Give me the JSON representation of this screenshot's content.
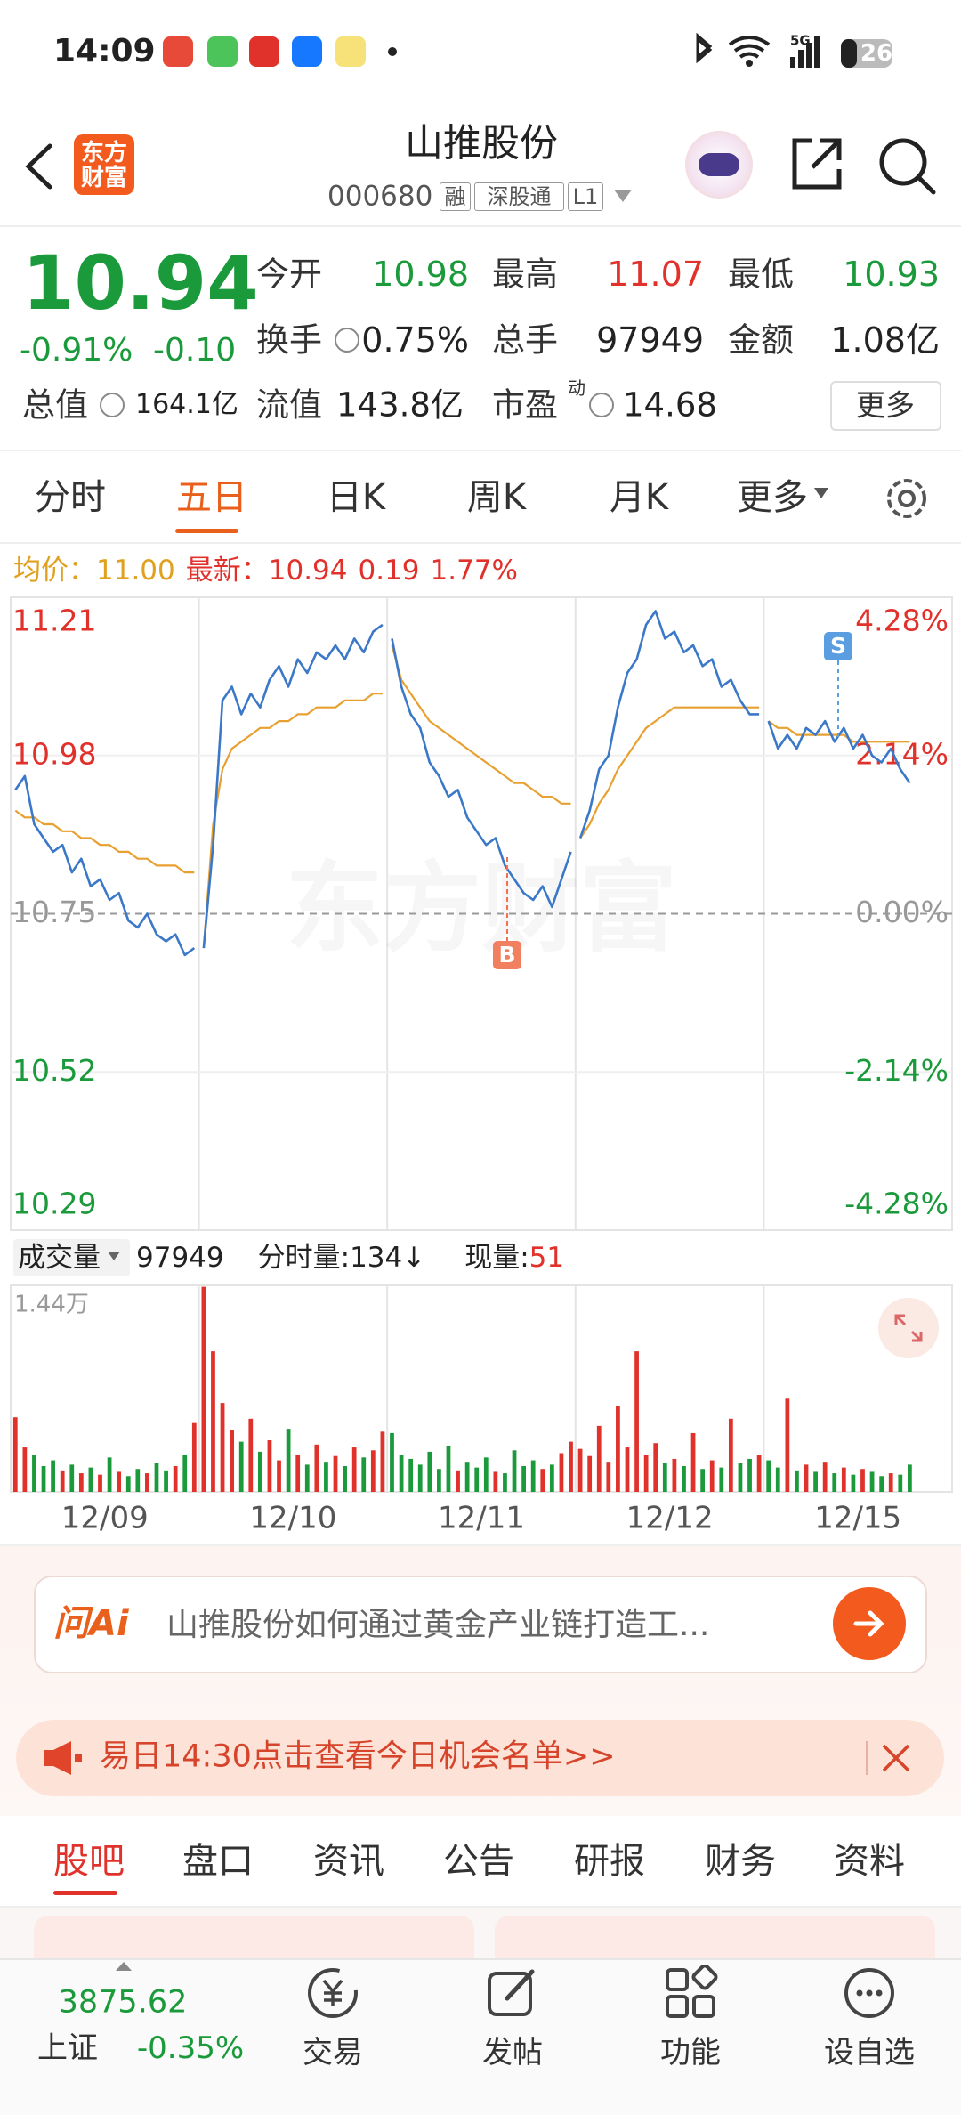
{
  "status_bar": {
    "time": "14:09",
    "signal": "5G",
    "battery": "26"
  },
  "header": {
    "logo": [
      "东方",
      "财富"
    ],
    "name": "山推股份",
    "code": "000680",
    "tags": [
      "融",
      "深股通",
      "L1"
    ]
  },
  "quote": {
    "price": "10.94",
    "change_pct": "-0.91%",
    "change": "-0.10",
    "rows": [
      [
        {
          "label": "今开",
          "value": "10.98"
        },
        {
          "label": "最高",
          "value": "11.07"
        },
        {
          "label": "最低",
          "value": "10.93"
        }
      ],
      [
        {
          "label": "换手",
          "value": "0.75%"
        },
        {
          "label": "总手",
          "value": "97949"
        },
        {
          "label": "金额",
          "value": "1.08亿"
        }
      ]
    ],
    "row3": [
      {
        "label": "总值",
        "value": "164.1亿"
      },
      {
        "label": "流值",
        "value": "143.8亿"
      },
      {
        "label": "市盈",
        "sup": "动",
        "value": "14.68"
      }
    ],
    "more": "更多"
  },
  "tabs": [
    "分时",
    "五日",
    "日K",
    "周K",
    "月K",
    "更多"
  ],
  "legend": {
    "avg_label": "均价：",
    "avg": "11.00",
    "last_label": "最新：",
    "last": "10.94",
    "change": "0.19",
    "change_pct": "1.77%"
  },
  "chart_data": [
    {
      "type": "line",
      "categories": [
        "12/09",
        "12/10",
        "12/11",
        "12/12",
        "12/15"
      ],
      "ylim": [
        10.29,
        11.21
      ],
      "yticks": [
        11.21,
        10.98,
        10.75,
        10.52,
        10.29
      ],
      "y2lim": [
        -4.28,
        4.28
      ],
      "y2ticks": [
        {
          "value": 4.28,
          "label": "4.28%"
        },
        {
          "value": 2.14,
          "label": "2.14%"
        },
        {
          "value": 0,
          "label": "0.00%"
        },
        {
          "value": -2.14,
          "label": "-2.14%"
        },
        {
          "value": -4.28,
          "label": "-4.28%"
        }
      ],
      "watermark": "东方财富",
      "markers": [
        "B",
        "S"
      ],
      "series": [
        {
          "color": "#3b78c8",
          "values": [
            [
              10.93,
              10.95,
              10.88,
              10.86,
              10.84,
              10.85,
              10.81,
              10.83,
              10.79,
              10.8,
              10.77,
              10.78,
              10.74,
              10.73,
              10.75,
              10.72,
              10.71,
              10.72,
              10.69,
              10.7
            ],
            [
              10.7,
              10.85,
              11.06,
              11.08,
              11.04,
              11.07,
              11.05,
              11.09,
              11.11,
              11.08,
              11.12,
              11.1,
              11.13,
              11.12,
              11.14,
              11.12,
              11.15,
              11.13,
              11.16,
              11.17
            ],
            [
              11.15,
              11.08,
              11.04,
              11.02,
              10.97,
              10.95,
              10.92,
              10.93,
              10.89,
              10.87,
              10.85,
              10.86,
              10.82,
              10.8,
              10.78,
              10.77,
              10.79,
              10.76,
              10.8,
              10.84
            ],
            [
              10.86,
              10.9,
              10.96,
              10.98,
              11.05,
              11.1,
              11.12,
              11.17,
              11.19,
              11.15,
              11.16,
              11.13,
              11.14,
              11.11,
              11.12,
              11.08,
              11.09,
              11.06,
              11.04,
              11.04
            ],
            [
              11.03,
              10.99,
              11.01,
              10.99,
              11.02,
              11.01,
              11.03,
              11.0,
              11.02,
              10.99,
              11.01,
              10.98,
              10.97,
              10.99,
              10.96,
              10.94
            ]
          ]
        },
        {
          "color": "#e8a030",
          "values": [
            [
              10.9,
              10.89,
              10.89,
              10.88,
              10.88,
              10.87,
              10.87,
              10.86,
              10.86,
              10.85,
              10.85,
              10.84,
              10.84,
              10.83,
              10.83,
              10.82,
              10.82,
              10.82,
              10.81,
              10.81
            ],
            [
              10.7,
              10.88,
              10.96,
              10.99,
              11.0,
              11.01,
              11.02,
              11.02,
              11.03,
              11.03,
              11.04,
              11.04,
              11.05,
              11.05,
              11.05,
              11.06,
              11.06,
              11.06,
              11.07,
              11.07
            ],
            [
              11.14,
              11.09,
              11.07,
              11.05,
              11.03,
              11.02,
              11.01,
              11.0,
              10.99,
              10.98,
              10.97,
              10.96,
              10.95,
              10.94,
              10.94,
              10.93,
              10.92,
              10.92,
              10.91,
              10.91
            ],
            [
              10.86,
              10.88,
              10.91,
              10.93,
              10.96,
              10.98,
              11.0,
              11.02,
              11.03,
              11.04,
              11.05,
              11.05,
              11.05,
              11.05,
              11.05,
              11.05,
              11.05,
              11.05,
              11.05,
              11.05
            ],
            [
              11.03,
              11.02,
              11.02,
              11.01,
              11.01,
              11.01,
              11.01,
              11.01,
              11.01,
              11.0,
              11.0,
              11.0,
              11.0,
              11.0,
              11.0,
              11.0
            ]
          ]
        }
      ]
    },
    {
      "type": "bar",
      "label": "成交量",
      "total": "97949",
      "tick_volume": "分时量:134↓",
      "current_label": "现量:",
      "current": "51",
      "ylim": [
        0,
        14400
      ],
      "yticks": [
        {
          "value": 14400,
          "label": "1.44万"
        }
      ],
      "up_color": "#e0312b",
      "down_color": "#1a9a3a",
      "values": [
        [
          5200,
          3100,
          2600,
          1800,
          2200,
          1500,
          1900,
          1300,
          1700,
          1200,
          2400,
          1400,
          1100,
          1600,
          1300,
          2000,
          1500,
          1800,
          2600,
          4800
        ],
        [
          14300,
          9800,
          6200,
          4300,
          3500,
          5100,
          2800,
          3600,
          2200,
          4400,
          2600,
          1900,
          3300,
          2100,
          2500,
          1800,
          3100,
          2400,
          2900,
          4200
        ],
        [
          4100,
          2600,
          2300,
          1900,
          2800,
          1600,
          3200,
          1500,
          2100,
          1700,
          2400,
          1400,
          1300,
          2900,
          1800,
          2200,
          1600,
          1900,
          2700,
          3500
        ],
        [
          3000,
          2500,
          4600,
          2100,
          6000,
          3100,
          9800,
          2600,
          3400,
          2000,
          2300,
          1800,
          4100,
          1600,
          2200,
          1700,
          5100,
          2000,
          2300,
          2600
        ],
        [
          2200,
          1700,
          6500,
          1500,
          1900,
          1400,
          2100,
          1300,
          1700,
          1200,
          1600,
          1400,
          1100,
          1300,
          1200,
          1900
        ]
      ]
    }
  ],
  "ai": {
    "brand": "问Ai",
    "prompt": "山推股份如何通过黄金产业链打造工..."
  },
  "notice": "易日14:30点击查看今日机会名单>>",
  "sections": [
    "股吧",
    "盘口",
    "资讯",
    "公告",
    "研报",
    "财务",
    "资料"
  ],
  "index": {
    "value": "3875.62",
    "name": "上证",
    "change": "-0.35%"
  },
  "nav": [
    "交易",
    "发帖",
    "功能",
    "设自选"
  ]
}
